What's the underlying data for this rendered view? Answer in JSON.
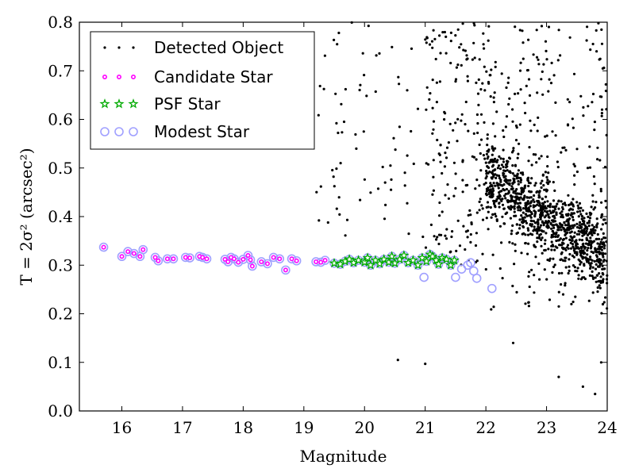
{
  "chart_data": {
    "type": "scatter",
    "xlabel": "Magnitude",
    "ylabel": "T = 2σ² (arcsec²)",
    "xlim": [
      15.3,
      24.0
    ],
    "ylim": [
      0.0,
      0.8
    ],
    "xticks": [
      "16",
      "17",
      "18",
      "19",
      "20",
      "21",
      "22",
      "23",
      "24"
    ],
    "yticks": [
      "0.0",
      "0.1",
      "0.2",
      "0.3",
      "0.4",
      "0.5",
      "0.6",
      "0.7",
      "0.8"
    ],
    "grid": false,
    "legend_position": "top-left",
    "series": [
      {
        "name": "Detected Object",
        "marker": "dot",
        "color": "#000000",
        "approx_count": 1500,
        "x_range": [
          19.0,
          24.0
        ],
        "y_range": [
          0.03,
          0.8
        ],
        "dense_from_mag": 22.0
      },
      {
        "name": "Candidate Star",
        "marker": "circle",
        "color": "#ff00ff",
        "points": [
          [
            15.7,
            0.337
          ],
          [
            16.0,
            0.318
          ],
          [
            16.1,
            0.328
          ],
          [
            16.2,
            0.324
          ],
          [
            16.3,
            0.318
          ],
          [
            16.35,
            0.332
          ],
          [
            16.55,
            0.316
          ],
          [
            16.6,
            0.309
          ],
          [
            16.75,
            0.313
          ],
          [
            16.85,
            0.313
          ],
          [
            17.05,
            0.316
          ],
          [
            17.12,
            0.315
          ],
          [
            17.28,
            0.318
          ],
          [
            17.33,
            0.316
          ],
          [
            17.4,
            0.313
          ],
          [
            17.7,
            0.312
          ],
          [
            17.75,
            0.307
          ],
          [
            17.8,
            0.316
          ],
          [
            17.85,
            0.313
          ],
          [
            17.92,
            0.306
          ],
          [
            18.0,
            0.312
          ],
          [
            18.08,
            0.32
          ],
          [
            18.12,
            0.311
          ],
          [
            18.15,
            0.298
          ],
          [
            18.3,
            0.307
          ],
          [
            18.4,
            0.303
          ],
          [
            18.5,
            0.316
          ],
          [
            18.6,
            0.313
          ],
          [
            18.7,
            0.29
          ],
          [
            18.8,
            0.313
          ],
          [
            18.88,
            0.309
          ],
          [
            19.2,
            0.307
          ],
          [
            19.28,
            0.306
          ],
          [
            19.35,
            0.31
          ]
        ]
      },
      {
        "name": "PSF Star",
        "marker": "star",
        "color": "#00aa00",
        "points": [
          [
            19.5,
            0.304
          ],
          [
            19.6,
            0.302
          ],
          [
            19.68,
            0.308
          ],
          [
            19.75,
            0.312
          ],
          [
            19.82,
            0.305
          ],
          [
            19.9,
            0.31
          ],
          [
            20.0,
            0.306
          ],
          [
            20.05,
            0.315
          ],
          [
            20.1,
            0.3
          ],
          [
            20.18,
            0.31
          ],
          [
            20.25,
            0.303
          ],
          [
            20.32,
            0.312
          ],
          [
            20.4,
            0.306
          ],
          [
            20.45,
            0.318
          ],
          [
            20.5,
            0.304
          ],
          [
            20.58,
            0.312
          ],
          [
            20.65,
            0.32
          ],
          [
            20.72,
            0.305
          ],
          [
            20.8,
            0.31
          ],
          [
            20.88,
            0.3
          ],
          [
            20.95,
            0.315
          ],
          [
            21.02,
            0.308
          ],
          [
            21.08,
            0.322
          ],
          [
            21.12,
            0.318
          ],
          [
            21.18,
            0.31
          ],
          [
            21.22,
            0.302
          ],
          [
            21.28,
            0.315
          ],
          [
            21.35,
            0.312
          ],
          [
            21.42,
            0.3
          ],
          [
            21.48,
            0.31
          ]
        ]
      },
      {
        "name": "Modest Star",
        "marker": "open-circle",
        "color": "#a0a0ff",
        "points": [
          [
            15.7,
            0.337
          ],
          [
            16.0,
            0.318
          ],
          [
            16.1,
            0.328
          ],
          [
            16.2,
            0.324
          ],
          [
            16.3,
            0.318
          ],
          [
            16.35,
            0.332
          ],
          [
            16.55,
            0.316
          ],
          [
            16.6,
            0.309
          ],
          [
            16.75,
            0.313
          ],
          [
            16.85,
            0.313
          ],
          [
            17.05,
            0.316
          ],
          [
            17.12,
            0.315
          ],
          [
            17.28,
            0.318
          ],
          [
            17.33,
            0.316
          ],
          [
            17.4,
            0.313
          ],
          [
            17.7,
            0.312
          ],
          [
            17.75,
            0.307
          ],
          [
            17.8,
            0.316
          ],
          [
            17.85,
            0.313
          ],
          [
            17.92,
            0.306
          ],
          [
            18.0,
            0.312
          ],
          [
            18.08,
            0.32
          ],
          [
            18.12,
            0.311
          ],
          [
            18.15,
            0.298
          ],
          [
            18.3,
            0.307
          ],
          [
            18.4,
            0.303
          ],
          [
            18.5,
            0.316
          ],
          [
            18.6,
            0.313
          ],
          [
            18.7,
            0.29
          ],
          [
            18.8,
            0.313
          ],
          [
            18.88,
            0.309
          ],
          [
            19.2,
            0.307
          ],
          [
            19.28,
            0.306
          ],
          [
            19.35,
            0.31
          ],
          [
            19.5,
            0.304
          ],
          [
            19.6,
            0.302
          ],
          [
            19.68,
            0.308
          ],
          [
            19.75,
            0.312
          ],
          [
            19.82,
            0.305
          ],
          [
            19.9,
            0.31
          ],
          [
            20.0,
            0.306
          ],
          [
            20.05,
            0.315
          ],
          [
            20.1,
            0.3
          ],
          [
            20.18,
            0.31
          ],
          [
            20.25,
            0.303
          ],
          [
            20.32,
            0.312
          ],
          [
            20.4,
            0.306
          ],
          [
            20.45,
            0.318
          ],
          [
            20.5,
            0.304
          ],
          [
            20.58,
            0.312
          ],
          [
            20.65,
            0.32
          ],
          [
            20.72,
            0.305
          ],
          [
            20.8,
            0.31
          ],
          [
            20.88,
            0.3
          ],
          [
            20.95,
            0.315
          ],
          [
            21.02,
            0.308
          ],
          [
            21.08,
            0.322
          ],
          [
            21.12,
            0.318
          ],
          [
            21.18,
            0.31
          ],
          [
            21.22,
            0.302
          ],
          [
            21.28,
            0.315
          ],
          [
            21.35,
            0.312
          ],
          [
            21.42,
            0.3
          ],
          [
            21.48,
            0.31
          ],
          [
            20.98,
            0.275
          ],
          [
            21.5,
            0.275
          ],
          [
            21.6,
            0.292
          ],
          [
            21.7,
            0.3
          ],
          [
            21.75,
            0.305
          ],
          [
            21.8,
            0.288
          ],
          [
            21.85,
            0.273
          ],
          [
            22.1,
            0.252
          ]
        ]
      }
    ]
  }
}
